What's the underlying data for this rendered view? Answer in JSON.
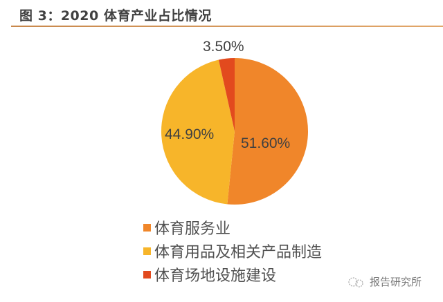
{
  "header": {
    "title": "图 3：2020 体育产业占比情况"
  },
  "chart_data": {
    "type": "pie",
    "title": "图 3：2020 体育产业占比情况",
    "categories": [
      "体育服务业",
      "体育用品及相关产品制造",
      "体育场地设施建设"
    ],
    "values": [
      51.6,
      44.9,
      3.5
    ],
    "labels": [
      "51.60%",
      "44.90%",
      "3.50%"
    ],
    "colors": [
      "#f0862a",
      "#f7b52a",
      "#e24a1e"
    ],
    "legend_position": "bottom"
  },
  "legend": [
    {
      "label": "体育服务业",
      "color": "#f0862a"
    },
    {
      "label": "体育用品及相关产品制造",
      "color": "#f7b52a"
    },
    {
      "label": "体育场地设施建设",
      "color": "#e24a1e"
    }
  ],
  "watermark": {
    "text": "报告研究所"
  }
}
